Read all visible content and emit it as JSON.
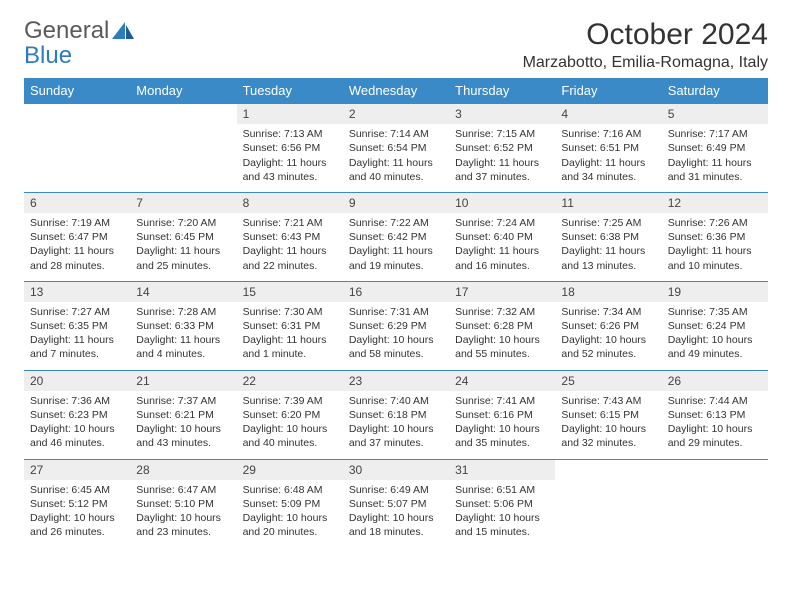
{
  "brand": {
    "line1": "General",
    "line2": "Blue"
  },
  "title": "October 2024",
  "location": "Marzabotto, Emilia-Romagna, Italy",
  "colors": {
    "header_bg": "#3a8ac8",
    "header_fg": "#ffffff",
    "daynum_bg": "#eeeeee",
    "rule": "#3a8ac8",
    "text": "#333333",
    "brand_gray": "#5a5a5a",
    "brand_blue": "#2f7bbf"
  },
  "weekdays": [
    "Sunday",
    "Monday",
    "Tuesday",
    "Wednesday",
    "Thursday",
    "Friday",
    "Saturday"
  ],
  "weeks": [
    [
      null,
      null,
      {
        "n": "1",
        "sr": "7:13 AM",
        "ss": "6:56 PM",
        "dl": "11 hours and 43 minutes."
      },
      {
        "n": "2",
        "sr": "7:14 AM",
        "ss": "6:54 PM",
        "dl": "11 hours and 40 minutes."
      },
      {
        "n": "3",
        "sr": "7:15 AM",
        "ss": "6:52 PM",
        "dl": "11 hours and 37 minutes."
      },
      {
        "n": "4",
        "sr": "7:16 AM",
        "ss": "6:51 PM",
        "dl": "11 hours and 34 minutes."
      },
      {
        "n": "5",
        "sr": "7:17 AM",
        "ss": "6:49 PM",
        "dl": "11 hours and 31 minutes."
      }
    ],
    [
      {
        "n": "6",
        "sr": "7:19 AM",
        "ss": "6:47 PM",
        "dl": "11 hours and 28 minutes."
      },
      {
        "n": "7",
        "sr": "7:20 AM",
        "ss": "6:45 PM",
        "dl": "11 hours and 25 minutes."
      },
      {
        "n": "8",
        "sr": "7:21 AM",
        "ss": "6:43 PM",
        "dl": "11 hours and 22 minutes."
      },
      {
        "n": "9",
        "sr": "7:22 AM",
        "ss": "6:42 PM",
        "dl": "11 hours and 19 minutes."
      },
      {
        "n": "10",
        "sr": "7:24 AM",
        "ss": "6:40 PM",
        "dl": "11 hours and 16 minutes."
      },
      {
        "n": "11",
        "sr": "7:25 AM",
        "ss": "6:38 PM",
        "dl": "11 hours and 13 minutes."
      },
      {
        "n": "12",
        "sr": "7:26 AM",
        "ss": "6:36 PM",
        "dl": "11 hours and 10 minutes."
      }
    ],
    [
      {
        "n": "13",
        "sr": "7:27 AM",
        "ss": "6:35 PM",
        "dl": "11 hours and 7 minutes."
      },
      {
        "n": "14",
        "sr": "7:28 AM",
        "ss": "6:33 PM",
        "dl": "11 hours and 4 minutes."
      },
      {
        "n": "15",
        "sr": "7:30 AM",
        "ss": "6:31 PM",
        "dl": "11 hours and 1 minute."
      },
      {
        "n": "16",
        "sr": "7:31 AM",
        "ss": "6:29 PM",
        "dl": "10 hours and 58 minutes."
      },
      {
        "n": "17",
        "sr": "7:32 AM",
        "ss": "6:28 PM",
        "dl": "10 hours and 55 minutes."
      },
      {
        "n": "18",
        "sr": "7:34 AM",
        "ss": "6:26 PM",
        "dl": "10 hours and 52 minutes."
      },
      {
        "n": "19",
        "sr": "7:35 AM",
        "ss": "6:24 PM",
        "dl": "10 hours and 49 minutes."
      }
    ],
    [
      {
        "n": "20",
        "sr": "7:36 AM",
        "ss": "6:23 PM",
        "dl": "10 hours and 46 minutes."
      },
      {
        "n": "21",
        "sr": "7:37 AM",
        "ss": "6:21 PM",
        "dl": "10 hours and 43 minutes."
      },
      {
        "n": "22",
        "sr": "7:39 AM",
        "ss": "6:20 PM",
        "dl": "10 hours and 40 minutes."
      },
      {
        "n": "23",
        "sr": "7:40 AM",
        "ss": "6:18 PM",
        "dl": "10 hours and 37 minutes."
      },
      {
        "n": "24",
        "sr": "7:41 AM",
        "ss": "6:16 PM",
        "dl": "10 hours and 35 minutes."
      },
      {
        "n": "25",
        "sr": "7:43 AM",
        "ss": "6:15 PM",
        "dl": "10 hours and 32 minutes."
      },
      {
        "n": "26",
        "sr": "7:44 AM",
        "ss": "6:13 PM",
        "dl": "10 hours and 29 minutes."
      }
    ],
    [
      {
        "n": "27",
        "sr": "6:45 AM",
        "ss": "5:12 PM",
        "dl": "10 hours and 26 minutes."
      },
      {
        "n": "28",
        "sr": "6:47 AM",
        "ss": "5:10 PM",
        "dl": "10 hours and 23 minutes."
      },
      {
        "n": "29",
        "sr": "6:48 AM",
        "ss": "5:09 PM",
        "dl": "10 hours and 20 minutes."
      },
      {
        "n": "30",
        "sr": "6:49 AM",
        "ss": "5:07 PM",
        "dl": "10 hours and 18 minutes."
      },
      {
        "n": "31",
        "sr": "6:51 AM",
        "ss": "5:06 PM",
        "dl": "10 hours and 15 minutes."
      },
      null,
      null
    ]
  ],
  "labels": {
    "sunrise": "Sunrise:",
    "sunset": "Sunset:",
    "daylight": "Daylight:"
  }
}
